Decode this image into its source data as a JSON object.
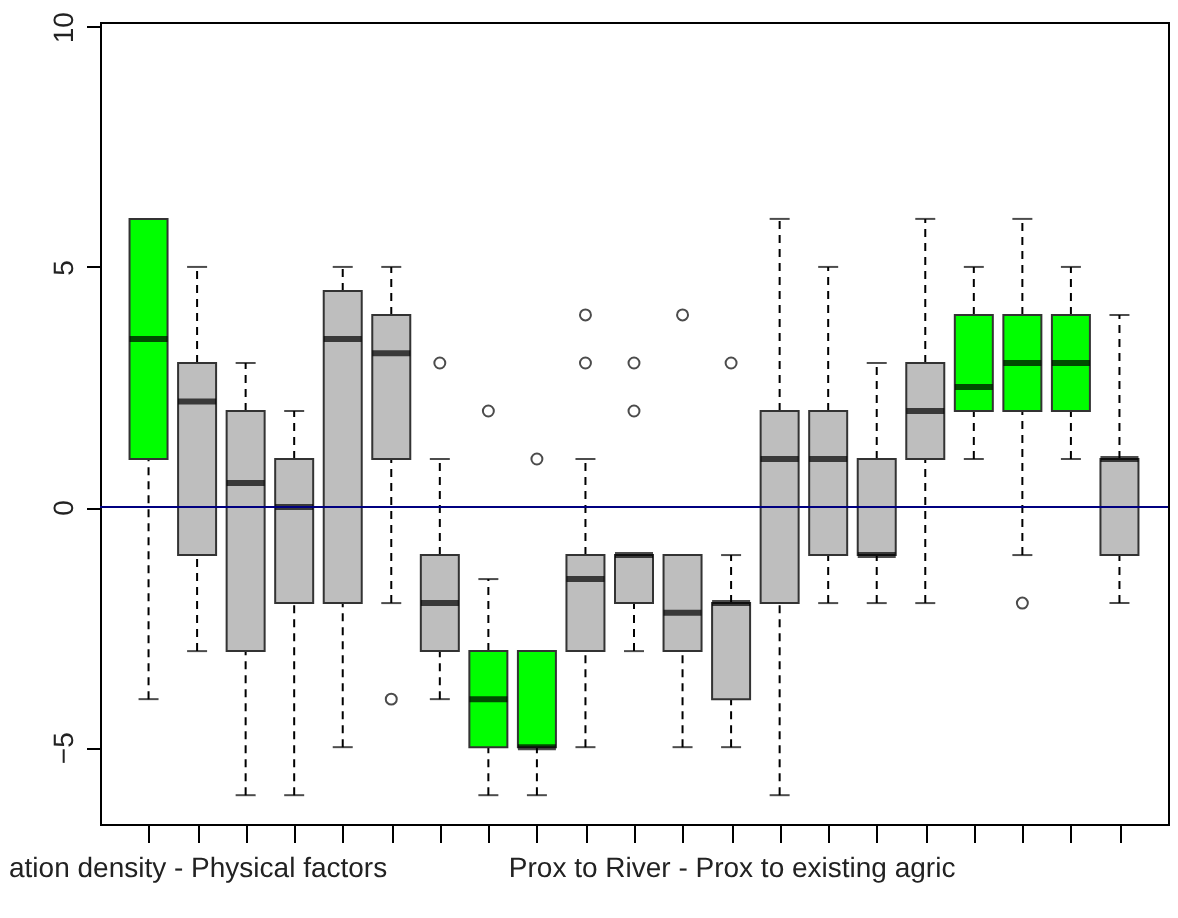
{
  "chart_data": {
    "type": "box",
    "categories": [
      null,
      "ation density - Physical factors",
      null,
      null,
      null,
      null,
      null,
      null,
      null,
      null,
      null,
      null,
      "Prox to River - Prox to existing agric",
      null,
      null,
      null,
      null,
      null,
      null,
      null,
      null
    ],
    "colors": [
      "#00ff00",
      "#bebebe",
      "#bebebe",
      "#bebebe",
      "#bebebe",
      "#bebebe",
      "#bebebe",
      "#00ff00",
      "#00ff00",
      "#bebebe",
      "#bebebe",
      "#bebebe",
      "#bebebe",
      "#bebebe",
      "#bebebe",
      "#bebebe",
      "#bebebe",
      "#00ff00",
      "#00ff00",
      "#00ff00",
      "#bebebe"
    ],
    "ylim": [
      -6.6,
      10.1
    ],
    "yticks": [
      -5,
      0,
      5,
      10
    ],
    "ref_lines": [
      {
        "axis": "y",
        "value": 0,
        "color": "#000080"
      }
    ],
    "boxes": [
      {
        "low": -4,
        "q1": 1,
        "median": 3.5,
        "q3": 6,
        "high": 6
      },
      {
        "low": -3,
        "q1": -1,
        "median": 2.2,
        "q3": 3,
        "high": 5
      },
      {
        "low": -6,
        "q1": -3,
        "median": 0.5,
        "q3": 2,
        "high": 3
      },
      {
        "low": -6,
        "q1": -2,
        "median": 0,
        "q3": 1,
        "high": 2
      },
      {
        "low": -5,
        "q1": -2,
        "median": 3.5,
        "q3": 4.5,
        "high": 5
      },
      {
        "low": -2,
        "q1": 1,
        "median": 3.2,
        "q3": 4,
        "high": 5,
        "outliers": [
          -4
        ]
      },
      {
        "low": -4,
        "q1": -3,
        "median": -2,
        "q3": -1,
        "high": 1,
        "outliers": [
          3
        ]
      },
      {
        "low": -6,
        "q1": -5,
        "median": -4,
        "q3": -3,
        "high": -1.5,
        "outliers": [
          2
        ]
      },
      {
        "low": -6,
        "q1": -5,
        "median": -5,
        "q3": -3,
        "high": -3,
        "outliers": [
          1
        ]
      },
      {
        "low": -5,
        "q1": -3,
        "median": -1.5,
        "q3": -1,
        "high": 1,
        "outliers": [
          3,
          4
        ]
      },
      {
        "low": -3,
        "q1": -2,
        "median": -1,
        "q3": -1,
        "high": -1,
        "outliers": [
          2,
          3
        ]
      },
      {
        "low": -5,
        "q1": -3,
        "median": -2.2,
        "q3": -1,
        "high": -1,
        "outliers": [
          4
        ]
      },
      {
        "low": -5,
        "q1": -4,
        "median": -2,
        "q3": -2,
        "high": -1,
        "outliers": [
          3
        ]
      },
      {
        "low": -6,
        "q1": -2,
        "median": 1,
        "q3": 2,
        "high": 6
      },
      {
        "low": -2,
        "q1": -1,
        "median": 1,
        "q3": 2,
        "high": 5
      },
      {
        "low": -2,
        "q1": -1,
        "median": -1,
        "q3": 1,
        "high": 3
      },
      {
        "low": -2,
        "q1": 1,
        "median": 2,
        "q3": 3,
        "high": 6
      },
      {
        "low": 1,
        "q1": 2,
        "median": 2.5,
        "q3": 4,
        "high": 5
      },
      {
        "low": -1,
        "q1": 2,
        "median": 3,
        "q3": 4,
        "high": 6,
        "outliers": [
          -2
        ]
      },
      {
        "low": 1,
        "q1": 2,
        "median": 3,
        "q3": 4,
        "high": 5
      },
      {
        "low": -2,
        "q1": -1,
        "median": 1,
        "q3": 1,
        "high": 4
      }
    ]
  }
}
